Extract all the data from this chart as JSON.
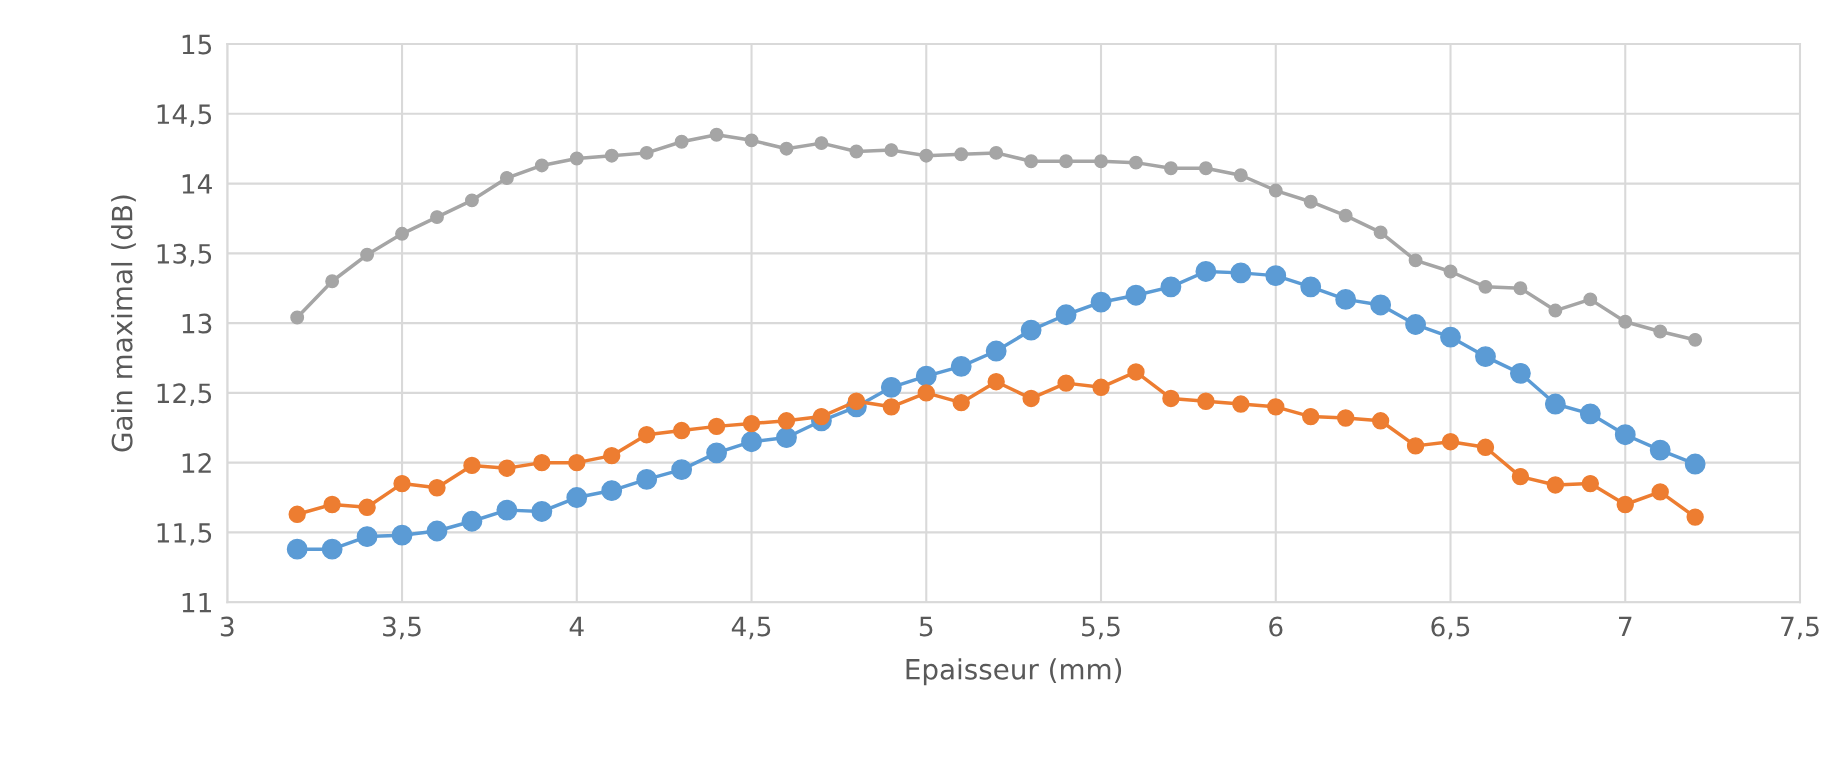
{
  "chart_data": {
    "type": "line",
    "xlabel": "Epaisseur (mm)",
    "ylabel": "Gain maximal (dB)",
    "x": [
      3.2,
      3.3,
      3.4,
      3.5,
      3.6,
      3.7,
      3.8,
      3.9,
      4.0,
      4.1,
      4.2,
      4.3,
      4.4,
      4.5,
      4.6,
      4.7,
      4.8,
      4.9,
      5.0,
      5.1,
      5.2,
      5.3,
      5.4,
      5.5,
      5.6,
      5.7,
      5.8,
      5.9,
      6.0,
      6.1,
      6.2,
      6.3,
      6.4,
      6.5,
      6.6,
      6.7,
      6.8,
      6.9,
      7.0,
      7.1,
      7.2
    ],
    "series": [
      {
        "color": "#5b9bd5",
        "values": [
          11.38,
          11.38,
          11.47,
          11.48,
          11.51,
          11.58,
          11.66,
          11.65,
          11.75,
          11.8,
          11.88,
          11.95,
          12.07,
          12.15,
          12.18,
          12.3,
          12.4,
          12.54,
          12.62,
          12.69,
          12.8,
          12.95,
          13.06,
          13.15,
          13.2,
          13.26,
          13.37,
          13.36,
          13.34,
          13.26,
          13.17,
          13.13,
          12.99,
          12.9,
          12.76,
          12.64,
          12.42,
          12.35,
          12.2,
          12.09,
          11.99
        ]
      },
      {
        "color": "#ed7d31",
        "values": [
          11.63,
          11.7,
          11.68,
          11.85,
          11.82,
          11.98,
          11.96,
          12.0,
          12.0,
          12.05,
          12.2,
          12.23,
          12.26,
          12.28,
          12.3,
          12.33,
          12.44,
          12.4,
          12.5,
          12.43,
          12.58,
          12.46,
          12.57,
          12.54,
          12.65,
          12.46,
          12.44,
          12.42,
          12.4,
          12.33,
          12.32,
          12.3,
          12.12,
          12.15,
          12.11,
          11.9,
          11.84,
          11.85,
          11.7,
          11.79,
          11.61
        ]
      },
      {
        "color": "#a5a5a5",
        "values": [
          13.04,
          13.3,
          13.49,
          13.64,
          13.76,
          13.88,
          14.04,
          14.13,
          14.18,
          14.2,
          14.22,
          14.3,
          14.35,
          14.31,
          14.25,
          14.29,
          14.23,
          14.24,
          14.2,
          14.21,
          14.22,
          14.16,
          14.16,
          14.16,
          14.15,
          14.11,
          14.11,
          14.06,
          13.95,
          13.87,
          13.77,
          13.65,
          13.45,
          13.37,
          13.26,
          13.25,
          13.09,
          13.17,
          13.01,
          12.94,
          12.88
        ]
      }
    ],
    "xlim": [
      3,
      7.5
    ],
    "ylim": [
      11,
      15
    ],
    "xticks": [
      3,
      {
        "value": 3.5,
        "label": "3,5"
      },
      4,
      {
        "value": 4.5,
        "label": "4,5"
      },
      5,
      {
        "value": 5.5,
        "label": "5,5"
      },
      6,
      {
        "value": 6.5,
        "label": "6,5"
      },
      7,
      {
        "value": 7.5,
        "label": "7,5"
      }
    ],
    "yticks": [
      11,
      {
        "value": 11.5,
        "label": "11,5"
      },
      12,
      {
        "value": 12.5,
        "label": "12,5"
      },
      13,
      {
        "value": 13.5,
        "label": "13,5"
      },
      14,
      {
        "value": 14.5,
        "label": "14,5"
      },
      15
    ],
    "grid": true,
    "marker": "circle",
    "line_style": "solid",
    "legend": false
  }
}
